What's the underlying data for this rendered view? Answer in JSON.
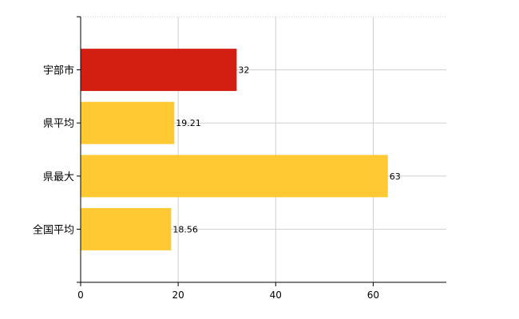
{
  "chart_data": {
    "type": "bar",
    "orientation": "horizontal",
    "categories": [
      "宇部市",
      "県平均",
      "県最大",
      "全国平均"
    ],
    "values": [
      32,
      19.21,
      63,
      18.56
    ],
    "value_labels": [
      "32",
      "19.21",
      "63",
      "18.56"
    ],
    "bar_colors": [
      "#d21f12",
      "#ffc933",
      "#ffc933",
      "#ffc933"
    ],
    "xlim": [
      0,
      75
    ],
    "xticks": [
      0,
      20,
      40,
      60
    ],
    "xtick_labels": [
      "0",
      "20",
      "40",
      "60"
    ],
    "grid": true,
    "legend": "none"
  }
}
